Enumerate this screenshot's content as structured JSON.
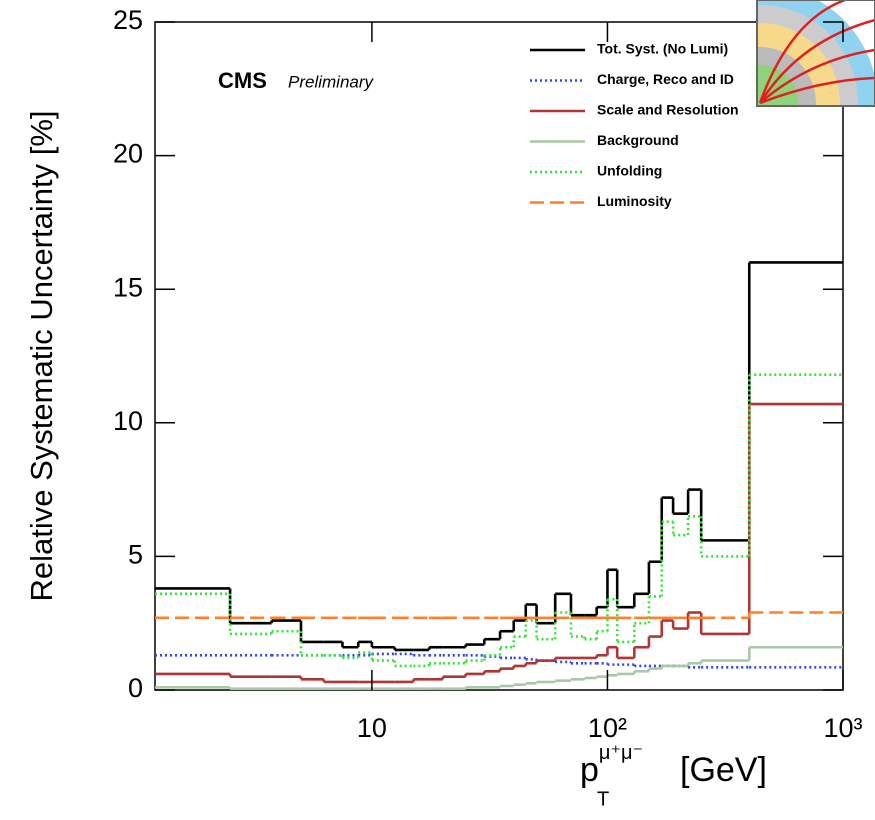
{
  "chart_data": {
    "type": "histogram",
    "ylabel": "Relative Systematic Uncertainty [%]",
    "xlabel": {
      "base": "p",
      "sub": "T",
      "sup": "μ⁺μ⁻",
      "unit": "[GeV]"
    },
    "experiment": "CMS",
    "status": "Preliminary",
    "log_x": true,
    "xlim": [
      1.2,
      1000
    ],
    "ylim": [
      0,
      25
    ],
    "xticks": [
      10,
      {
        "value": 100,
        "label": "10²"
      },
      {
        "value": 1000,
        "label": "10³"
      }
    ],
    "yticks": [
      0,
      5,
      10,
      15,
      20,
      25
    ],
    "bins": [
      1.2,
      2.5,
      3.75,
      5,
      6.25,
      7.5,
      8.75,
      10,
      12.5,
      15,
      17.5,
      20,
      25,
      30,
      35,
      40,
      45,
      50,
      55,
      60,
      70,
      80,
      90,
      100,
      110,
      130,
      150,
      170,
      190,
      220,
      250,
      400,
      1000
    ],
    "series": [
      {
        "name": "Tot. Syst. (No Lumi)",
        "color": "#000000",
        "style": "solid",
        "values": [
          3.8,
          2.5,
          2.6,
          1.8,
          1.8,
          1.6,
          1.8,
          1.6,
          1.5,
          1.5,
          1.6,
          1.6,
          1.7,
          1.9,
          2.2,
          2.6,
          3.2,
          2.5,
          2.5,
          3.6,
          2.8,
          2.8,
          3.1,
          4.5,
          3.1,
          3.6,
          4.8,
          7.2,
          6.6,
          7.5,
          5.6,
          16.0
        ]
      },
      {
        "name": "Charge, Reco and ID",
        "color": "#3344ee",
        "style": "dotted",
        "values": [
          1.3,
          1.3,
          1.3,
          1.3,
          1.3,
          1.3,
          1.3,
          1.35,
          1.35,
          1.3,
          1.3,
          1.3,
          1.3,
          1.25,
          1.2,
          1.2,
          1.15,
          1.1,
          1.1,
          1.05,
          1.0,
          1.0,
          1.0,
          0.95,
          0.95,
          0.9,
          0.9,
          0.9,
          0.9,
          0.85,
          0.85,
          0.85
        ]
      },
      {
        "name": "Scale and Resolution",
        "color": "#b03535",
        "style": "solid",
        "values": [
          0.6,
          0.5,
          0.5,
          0.4,
          0.3,
          0.3,
          0.3,
          0.3,
          0.3,
          0.4,
          0.4,
          0.5,
          0.6,
          0.7,
          0.8,
          0.9,
          1.0,
          1.1,
          1.1,
          1.2,
          1.2,
          1.2,
          1.3,
          1.6,
          1.2,
          1.6,
          2.0,
          2.6,
          2.3,
          2.9,
          2.1,
          10.7
        ]
      },
      {
        "name": "Background",
        "color": "#a9c9a4",
        "style": "solid",
        "values": [
          0.1,
          0.05,
          0.05,
          0.05,
          0.05,
          0.05,
          0.05,
          0.05,
          0.05,
          0.05,
          0.05,
          0.05,
          0.1,
          0.1,
          0.15,
          0.2,
          0.25,
          0.3,
          0.3,
          0.35,
          0.4,
          0.45,
          0.5,
          0.55,
          0.6,
          0.7,
          0.8,
          0.9,
          0.9,
          1.0,
          1.1,
          1.6
        ]
      },
      {
        "name": "Unfolding",
        "color": "#33e633",
        "style": "dotted",
        "values": [
          3.6,
          2.1,
          2.2,
          1.3,
          1.3,
          1.2,
          1.4,
          1.1,
          0.9,
          0.9,
          1.0,
          1.0,
          1.1,
          1.3,
          1.6,
          2.0,
          2.6,
          1.9,
          1.9,
          2.9,
          2.0,
          1.9,
          2.2,
          3.4,
          1.8,
          2.5,
          3.5,
          6.3,
          5.8,
          6.5,
          5.0,
          11.8
        ]
      },
      {
        "name": "Luminosity",
        "color": "#ff7f2a",
        "style": "dashed",
        "values": [
          2.7,
          2.7,
          2.7,
          2.7,
          2.7,
          2.7,
          2.7,
          2.7,
          2.7,
          2.7,
          2.7,
          2.7,
          2.7,
          2.7,
          2.7,
          2.7,
          2.7,
          2.7,
          2.7,
          2.7,
          2.7,
          2.7,
          2.7,
          2.7,
          2.7,
          2.7,
          2.7,
          2.7,
          2.7,
          2.7,
          2.7,
          2.9
        ]
      }
    ]
  }
}
